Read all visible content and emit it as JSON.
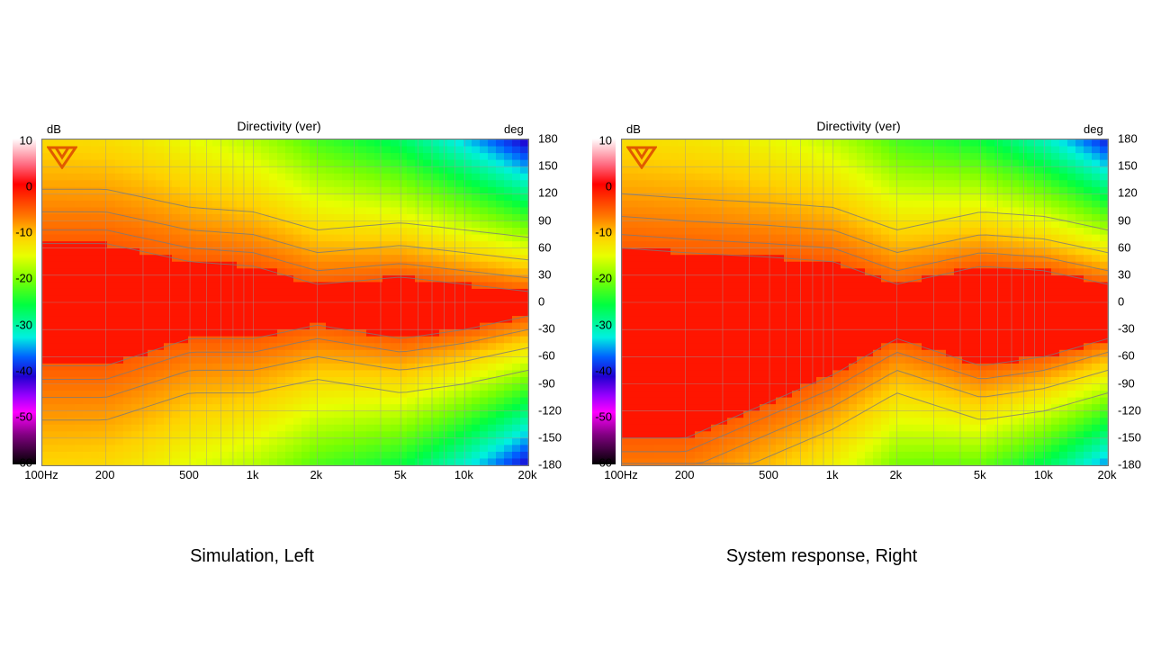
{
  "captions": {
    "left": "Simulation, Left",
    "right": "System response, Right"
  },
  "colors": {
    "grid": "#9a9a9a",
    "contour": "#7a7a7a",
    "logo": "#e05a00",
    "colormap": [
      "#ffffff",
      "#ff0000",
      "#ff7a00",
      "#ffd000",
      "#7dff00",
      "#00ff40",
      "#00f0e0",
      "#0060ff",
      "#9900ff",
      "#ff00ff",
      "#000000"
    ]
  },
  "icons": {
    "logo": "brand-logo-icon"
  },
  "chart_data": [
    {
      "type": "heatmap",
      "title": "Directivity (ver)",
      "unit_left": "dB",
      "unit_right": "deg",
      "color_scale": {
        "min": -60,
        "max": 10,
        "ticks": [
          "10",
          "0",
          "-10",
          "-20",
          "-30",
          "-40",
          "-50",
          "-60"
        ]
      },
      "x_scale": "log",
      "xlim": [
        100,
        20000
      ],
      "x_ticks": [
        {
          "value": 100,
          "label": "100Hz"
        },
        {
          "value": 200,
          "label": "200"
        },
        {
          "value": 500,
          "label": "500"
        },
        {
          "value": 1000,
          "label": "1k"
        },
        {
          "value": 2000,
          "label": "2k"
        },
        {
          "value": 5000,
          "label": "5k"
        },
        {
          "value": 10000,
          "label": "10k"
        },
        {
          "value": 20000,
          "label": "20k"
        }
      ],
      "ylim": [
        -180,
        180
      ],
      "y_ticks": [
        "180",
        "150",
        "120",
        "90",
        "60",
        "30",
        "0",
        "-30",
        "-60",
        "-90",
        "-120",
        "-150",
        "-180"
      ],
      "beamwidth": [
        {
          "freq": 100,
          "top": 65,
          "bottom": -70
        },
        {
          "freq": 200,
          "top": 65,
          "bottom": -70
        },
        {
          "freq": 500,
          "top": 45,
          "bottom": -40
        },
        {
          "freq": 1000,
          "top": 40,
          "bottom": -40
        },
        {
          "freq": 2000,
          "top": 20,
          "bottom": -25
        },
        {
          "freq": 5000,
          "top": 28,
          "bottom": -40
        },
        {
          "freq": 10000,
          "top": 20,
          "bottom": -30
        },
        {
          "freq": 20000,
          "top": 12,
          "bottom": -15
        }
      ],
      "grid": true
    },
    {
      "type": "heatmap",
      "title": "Directivity (ver)",
      "unit_left": "dB",
      "unit_right": "deg",
      "color_scale": {
        "min": -60,
        "max": 10,
        "ticks": [
          "10",
          "0",
          "-10",
          "-20",
          "-30",
          "-40",
          "-50",
          "-60"
        ]
      },
      "x_scale": "log",
      "xlim": [
        100,
        20000
      ],
      "x_ticks": [
        {
          "value": 100,
          "label": "100Hz"
        },
        {
          "value": 200,
          "label": "200"
        },
        {
          "value": 500,
          "label": "500"
        },
        {
          "value": 1000,
          "label": "1k"
        },
        {
          "value": 2000,
          "label": "2k"
        },
        {
          "value": 5000,
          "label": "5k"
        },
        {
          "value": 10000,
          "label": "10k"
        },
        {
          "value": 20000,
          "label": "20k"
        }
      ],
      "ylim": [
        -180,
        180
      ],
      "y_ticks": [
        "180",
        "150",
        "120",
        "90",
        "60",
        "30",
        "0",
        "-30",
        "-60",
        "-90",
        "-120",
        "-150",
        "-180"
      ],
      "beamwidth": [
        {
          "freq": 100,
          "top": 60,
          "bottom": -150
        },
        {
          "freq": 200,
          "top": 55,
          "bottom": -150
        },
        {
          "freq": 500,
          "top": 50,
          "bottom": -110
        },
        {
          "freq": 1000,
          "top": 45,
          "bottom": -80
        },
        {
          "freq": 2000,
          "top": 20,
          "bottom": -40
        },
        {
          "freq": 5000,
          "top": 40,
          "bottom": -70
        },
        {
          "freq": 10000,
          "top": 35,
          "bottom": -60
        },
        {
          "freq": 20000,
          "top": 20,
          "bottom": -40
        }
      ],
      "grid": true
    }
  ]
}
